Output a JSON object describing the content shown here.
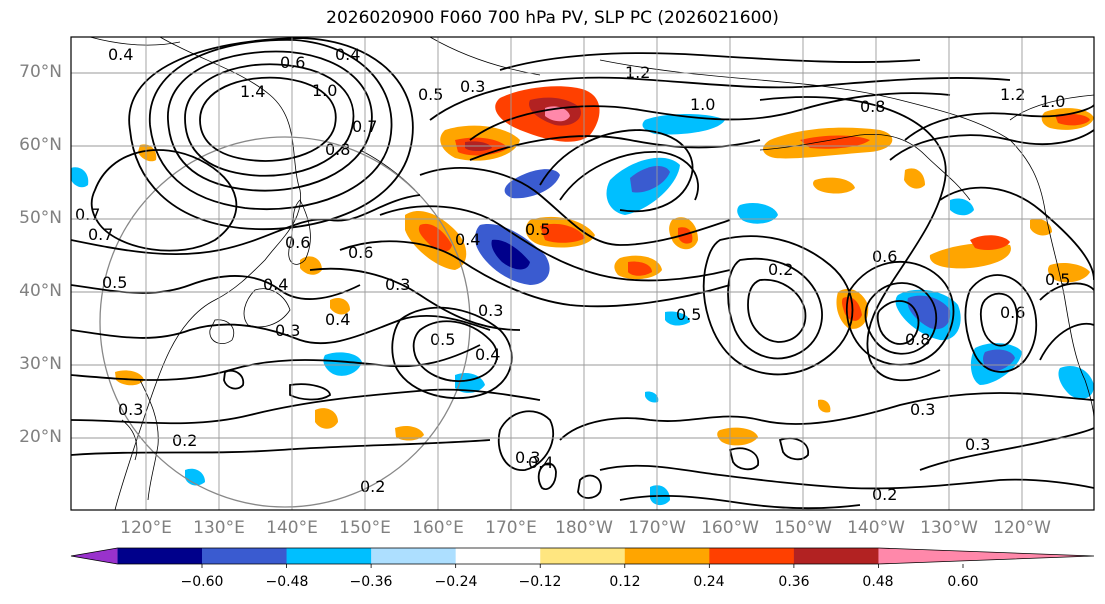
{
  "title": "2026020900 F060 700 hPa PV, SLP PC (2026021600)",
  "lat_labels": [
    "70°N",
    "60°N",
    "50°N",
    "40°N",
    "30°N",
    "20°N"
  ],
  "lon_labels": [
    "120°E",
    "130°E",
    "140°E",
    "150°E",
    "160°E",
    "170°E",
    "180°W",
    "170°W",
    "160°W",
    "150°W",
    "140°W",
    "130°W",
    "120°W"
  ],
  "colorbar": {
    "colors": [
      "#9932CC",
      "#00008B",
      "#3A5BD0",
      "#00BFFF",
      "#ADDFFF",
      "#FFFFFF",
      "#FFE680",
      "#FFA500",
      "#FF4000",
      "#B22222",
      "#FF88AA"
    ],
    "tick_labels": [
      "−0.60",
      "−0.48",
      "−0.36",
      "−0.24",
      "−0.12",
      "0.12",
      "0.24",
      "0.36",
      "0.48",
      "0.60"
    ]
  },
  "contour_labels": [
    "0.4",
    "0.4",
    "0.6",
    "1.4",
    "1.0",
    "1.2",
    "0.5",
    "0.3",
    "1.2",
    "1.0",
    "0.8",
    "1.0",
    "0.7",
    "0.8",
    "0.7",
    "0.7",
    "0.4",
    "0.6",
    "0.5",
    "0.3",
    "0.4",
    "0.6",
    "0.5",
    "0.3",
    "0.4",
    "0.5",
    "0.3",
    "0.2",
    "0.6",
    "0.4",
    "0.8",
    "0.6",
    "0.5",
    "0.3",
    "0.3",
    "0.4",
    "0.2",
    "0.2",
    "0.3",
    "0.2",
    "0.3",
    "0.5"
  ]
}
